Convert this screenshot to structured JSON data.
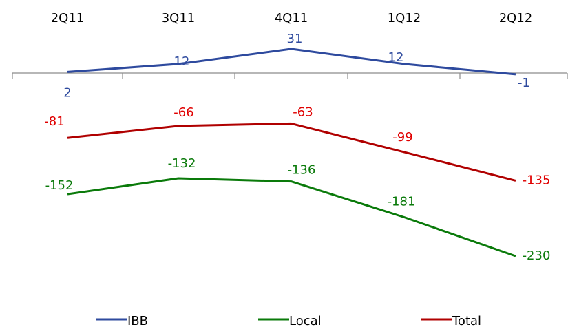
{
  "chart_data": {
    "type": "line",
    "categories": [
      "2Q11",
      "3Q11",
      "4Q11",
      "1Q12",
      "2Q12"
    ],
    "series": [
      {
        "name": "IBB",
        "color": "#2e4a9e",
        "values": [
          2,
          12,
          31,
          12,
          -1
        ],
        "labels": [
          "2",
          "12",
          "31",
          "12",
          "-1"
        ]
      },
      {
        "name": "Local",
        "color": "#0a7a0a",
        "values": [
          -152,
          -132,
          -136,
          -181,
          -230
        ],
        "labels": [
          "-152",
          "-132",
          "-136",
          "-181",
          "-230"
        ]
      },
      {
        "name": "Total",
        "color": "#b00000",
        "values": [
          -81,
          -66,
          -63,
          -99,
          -135
        ],
        "labels": [
          "-81",
          "-66",
          "-63",
          "-99",
          "-135"
        ]
      }
    ],
    "label_colors": {
      "IBB": "#2e4a9e",
      "Local": "#0a7a0a",
      "Total": "#e00000"
    },
    "axis_color": "#8c8c8c",
    "x_axis_position": "top",
    "grid": false,
    "legend_position": "bottom",
    "ylim": [
      -235,
      35
    ]
  }
}
